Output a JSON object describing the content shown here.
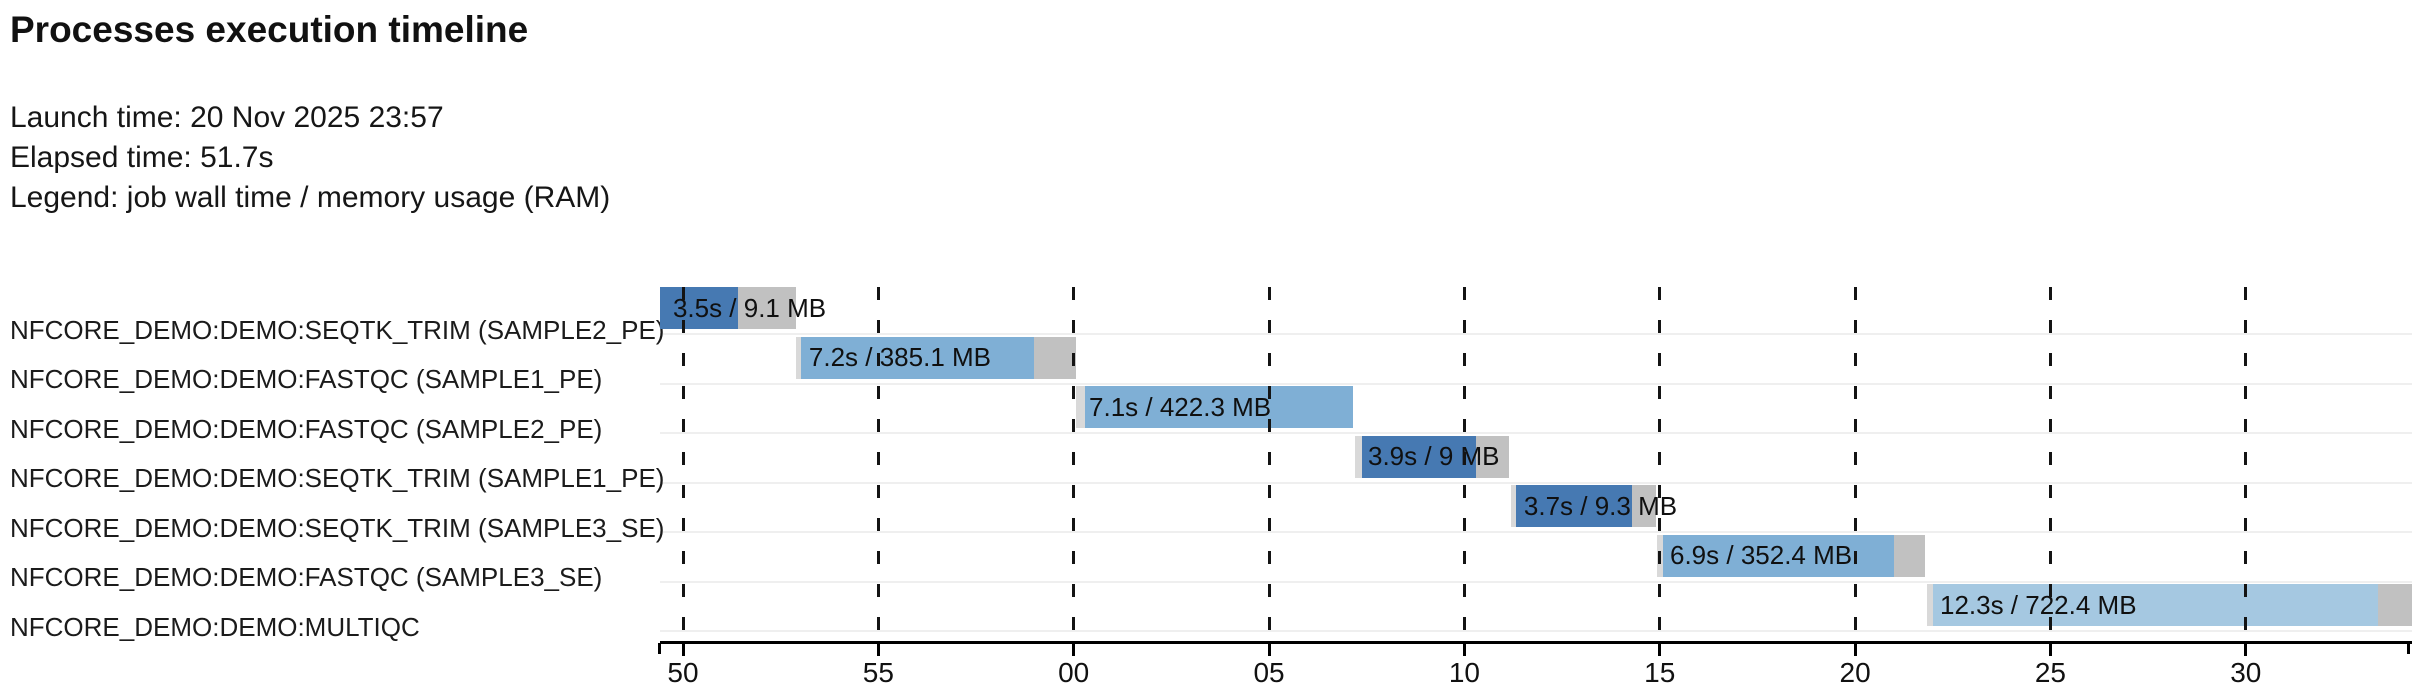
{
  "header": {
    "title": "Processes execution timeline",
    "launch_line": "Launch time: 20 Nov 2025 23:57",
    "elapsed_line": "Elapsed time: 51.7s",
    "legend_line": "Legend: job wall time / memory usage (RAM)"
  },
  "colors": {
    "seqtk_trim_bar": "#4679b2",
    "fastqc_bar": "#7fafd5",
    "multiqc_bar": "#a5c8e1",
    "tail_gray": "#c1c1c1",
    "lead_gray": "#d9d9d9",
    "row_separator": "#efefef",
    "gridline": "#141414",
    "axis": "#000000",
    "text": "#1b1b1b"
  },
  "chart_data": {
    "type": "bar",
    "variant": "horizontal-gantt-timeline",
    "title": "Processes execution timeline",
    "legend": "job wall time / memory usage (RAM)",
    "launch_time": "20 Nov 2025 23:57",
    "elapsed_time": "51.7s",
    "x_axis": {
      "unit": "clock seconds (23:57:xx → 23:58:xx)",
      "start_s": 49.41,
      "end_s": 94.25,
      "major_ticks": [
        {
          "t": 50,
          "label": "50"
        },
        {
          "t": 55,
          "label": "55"
        },
        {
          "t": 60,
          "label": "00"
        },
        {
          "t": 65,
          "label": "05"
        },
        {
          "t": 70,
          "label": "10"
        },
        {
          "t": 75,
          "label": "15"
        },
        {
          "t": 80,
          "label": "20"
        },
        {
          "t": 85,
          "label": "25"
        },
        {
          "t": 90,
          "label": "30"
        }
      ],
      "end_ticks": [
        49.41,
        94.17
      ],
      "gridlines": "vertical dashed at each major tick, drawn over bars"
    },
    "group_colors": {
      "SEQTK_TRIM": "#4679b2",
      "FASTQC": "#7fafd5",
      "MULTIQC": "#a5c8e1"
    },
    "tasks": [
      {
        "process": "NFCORE_DEMO:DEMO:SEQTK_TRIM (SAMPLE2_PE)",
        "bar_label": "3.5s / 9.1 MB",
        "wall_time": "3.5s",
        "memory": "9.1 MB",
        "group": "SEQTK_TRIM",
        "start_s": 49.41,
        "lead_end_s": 49.41,
        "main_end_s": 51.41,
        "end_s": 52.89
      },
      {
        "process": "NFCORE_DEMO:DEMO:FASTQC (SAMPLE1_PE)",
        "bar_label": "7.2s / 385.1 MB",
        "wall_time": "7.2s",
        "memory": "385.1 MB",
        "group": "FASTQC",
        "start_s": 52.89,
        "lead_end_s": 53.02,
        "main_end_s": 58.98,
        "end_s": 60.06
      },
      {
        "process": "NFCORE_DEMO:DEMO:FASTQC (SAMPLE2_PE)",
        "bar_label": "7.1s / 422.3 MB",
        "wall_time": "7.1s",
        "memory": "422.3 MB",
        "group": "FASTQC",
        "start_s": 60.06,
        "lead_end_s": 60.29,
        "main_end_s": 67.15,
        "end_s": 67.15
      },
      {
        "process": "NFCORE_DEMO:DEMO:SEQTK_TRIM (SAMPLE1_PE)",
        "bar_label": "3.9s / 9 MB",
        "wall_time": "3.9s",
        "memory": "9 MB",
        "group": "SEQTK_TRIM",
        "start_s": 67.2,
        "lead_end_s": 67.38,
        "main_end_s": 70.3,
        "end_s": 71.14
      },
      {
        "process": "NFCORE_DEMO:DEMO:SEQTK_TRIM (SAMPLE3_SE)",
        "bar_label": "3.7s / 9.3 MB",
        "wall_time": "3.7s",
        "memory": "9.3 MB",
        "group": "SEQTK_TRIM",
        "start_s": 71.19,
        "lead_end_s": 71.32,
        "main_end_s": 74.29,
        "end_s": 74.9
      },
      {
        "process": "NFCORE_DEMO:DEMO:FASTQC (SAMPLE3_SE)",
        "bar_label": "6.9s / 352.4 MB",
        "wall_time": "6.9s",
        "memory": "352.4 MB",
        "group": "FASTQC",
        "start_s": 74.93,
        "lead_end_s": 75.08,
        "main_end_s": 80.99,
        "end_s": 81.79
      },
      {
        "process": "NFCORE_DEMO:DEMO:MULTIQC",
        "bar_label": "12.3s / 722.4 MB",
        "wall_time": "12.3s",
        "memory": "722.4 MB",
        "group": "MULTIQC",
        "start_s": 81.84,
        "lead_end_s": 81.99,
        "main_end_s": 93.38,
        "end_s": 94.25
      }
    ]
  }
}
